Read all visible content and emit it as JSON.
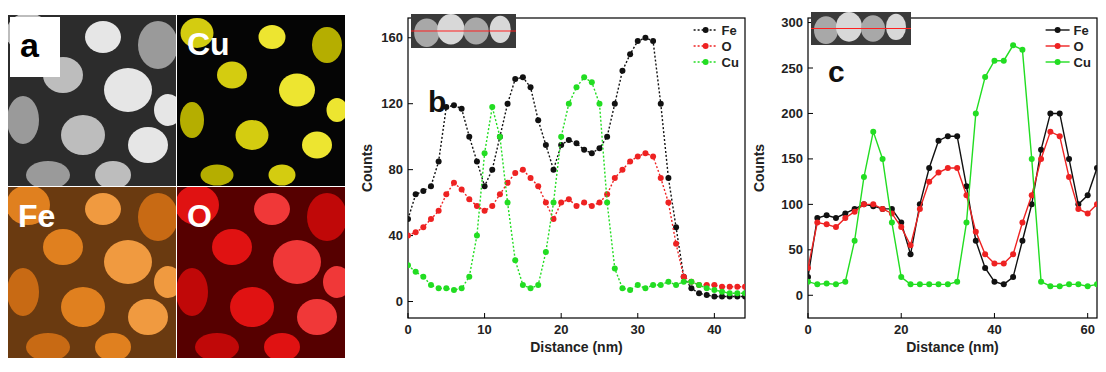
{
  "image_panel": {
    "label": "a",
    "maps": [
      "Cu",
      "Fe",
      "O"
    ]
  },
  "chart_data": [
    {
      "type": "line",
      "panel_label": "b",
      "x_label": "Distance (nm)",
      "y_label": "Counts",
      "x": [
        0,
        1,
        2,
        3,
        4,
        5,
        6,
        7,
        8,
        9,
        10,
        11,
        12,
        13,
        14,
        15,
        16,
        17,
        18,
        19,
        20,
        21,
        22,
        23,
        24,
        25,
        26,
        27,
        28,
        29,
        30,
        31,
        32,
        33,
        34,
        35,
        36,
        37,
        38,
        39,
        40,
        41,
        42,
        43,
        44
      ],
      "xlim": [
        0,
        44
      ],
      "xticks": [
        0,
        10,
        20,
        30,
        40
      ],
      "ylim": [
        -10,
        172
      ],
      "yticks": [
        0,
        40,
        80,
        120,
        160
      ],
      "legend": "upper right",
      "grid": false,
      "series": [
        {
          "name": "Fe",
          "color": "#111111",
          "marker": "circle",
          "line_style": "dotted",
          "values": [
            50,
            65,
            67,
            70,
            85,
            118,
            119,
            117,
            100,
            85,
            70,
            80,
            100,
            120,
            135,
            136,
            130,
            110,
            95,
            80,
            95,
            98,
            96,
            92,
            90,
            93,
            100,
            120,
            140,
            150,
            158,
            160,
            158,
            120,
            75,
            45,
            15,
            8,
            5,
            4,
            3,
            3,
            3,
            3,
            3
          ]
        },
        {
          "name": "O",
          "color": "#ee2222",
          "marker": "circle",
          "line_style": "dotted",
          "values": [
            40,
            42,
            45,
            50,
            55,
            65,
            72,
            68,
            62,
            58,
            55,
            58,
            65,
            72,
            78,
            80,
            75,
            70,
            60,
            50,
            60,
            62,
            58,
            60,
            58,
            60,
            65,
            75,
            80,
            85,
            88,
            90,
            88,
            75,
            60,
            35,
            15,
            12,
            10,
            10,
            10,
            9,
            9,
            9,
            9
          ]
        },
        {
          "name": "Cu",
          "color": "#22dd22",
          "marker": "circle",
          "line_style": "dotted",
          "values": [
            22,
            18,
            15,
            10,
            8,
            8,
            7,
            8,
            15,
            40,
            90,
            118,
            100,
            60,
            25,
            10,
            8,
            10,
            30,
            60,
            100,
            120,
            130,
            136,
            133,
            120,
            60,
            20,
            8,
            7,
            10,
            8,
            10,
            10,
            12,
            10,
            12,
            12,
            10,
            8,
            7,
            6,
            5,
            5,
            5
          ]
        }
      ]
    },
    {
      "type": "line",
      "panel_label": "c",
      "x_label": "Distance (nm)",
      "y_label": "Counts",
      "x": [
        0,
        2,
        4,
        6,
        8,
        10,
        12,
        14,
        16,
        18,
        20,
        22,
        24,
        26,
        28,
        30,
        32,
        34,
        36,
        38,
        40,
        42,
        44,
        46,
        48,
        50,
        52,
        54,
        56,
        58,
        60,
        62
      ],
      "xlim": [
        0,
        62
      ],
      "xticks": [
        0,
        20,
        40,
        60
      ],
      "ylim": [
        -25,
        305
      ],
      "yticks": [
        0,
        50,
        100,
        150,
        200,
        250,
        300
      ],
      "legend": "upper right",
      "grid": false,
      "series": [
        {
          "name": "Fe",
          "color": "#111111",
          "marker": "circle",
          "line_style": "solid",
          "values": [
            20,
            85,
            88,
            85,
            90,
            95,
            100,
            98,
            95,
            95,
            80,
            45,
            100,
            140,
            170,
            175,
            175,
            120,
            60,
            30,
            15,
            12,
            20,
            60,
            100,
            160,
            200,
            200,
            150,
            100,
            110,
            140
          ]
        },
        {
          "name": "O",
          "color": "#ee2222",
          "marker": "circle",
          "line_style": "solid",
          "values": [
            30,
            80,
            78,
            75,
            85,
            92,
            100,
            100,
            95,
            90,
            75,
            55,
            95,
            125,
            135,
            140,
            140,
            110,
            70,
            45,
            35,
            35,
            45,
            80,
            110,
            150,
            180,
            175,
            130,
            95,
            90,
            100
          ]
        },
        {
          "name": "Cu",
          "color": "#22dd22",
          "marker": "circle",
          "line_style": "solid",
          "values": [
            15,
            12,
            13,
            12,
            15,
            60,
            130,
            180,
            150,
            80,
            20,
            12,
            12,
            12,
            12,
            12,
            15,
            80,
            200,
            240,
            258,
            258,
            275,
            270,
            150,
            15,
            10,
            10,
            12,
            12,
            10,
            12
          ]
        }
      ]
    }
  ]
}
